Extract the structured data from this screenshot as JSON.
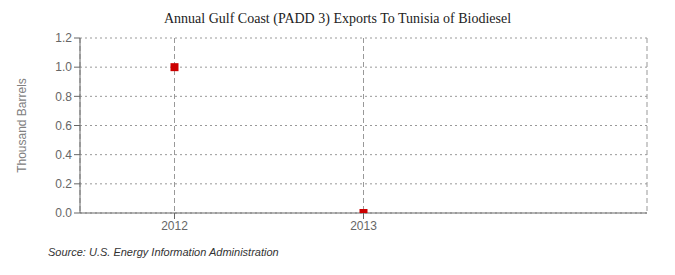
{
  "chart_data": {
    "type": "scatter",
    "title": "Annual Gulf Coast (PADD 3) Exports To Tunisia of Biodiesel",
    "ylabel": "Thousand Barrels",
    "source": "Source: U.S. Energy Information Administration",
    "x": [
      2012,
      2013
    ],
    "values": [
      1.0,
      0.0
    ],
    "color": "#cc0000",
    "marker": "square",
    "xlim": [
      2011.5,
      2014.5
    ],
    "xticks": [
      2012,
      2013
    ],
    "ylim": [
      0.0,
      1.2
    ],
    "yticks": [
      {
        "value": 0.0,
        "label": "0.0"
      },
      {
        "value": 0.2,
        "label": "0.2"
      },
      {
        "value": 0.4,
        "label": "0.4"
      },
      {
        "value": 0.6,
        "label": "0.6"
      },
      {
        "value": 0.8,
        "label": "0.8"
      },
      {
        "value": 1.0,
        "label": "1.0"
      },
      {
        "value": 1.2,
        "label": "1.2"
      }
    ],
    "grid": true
  }
}
